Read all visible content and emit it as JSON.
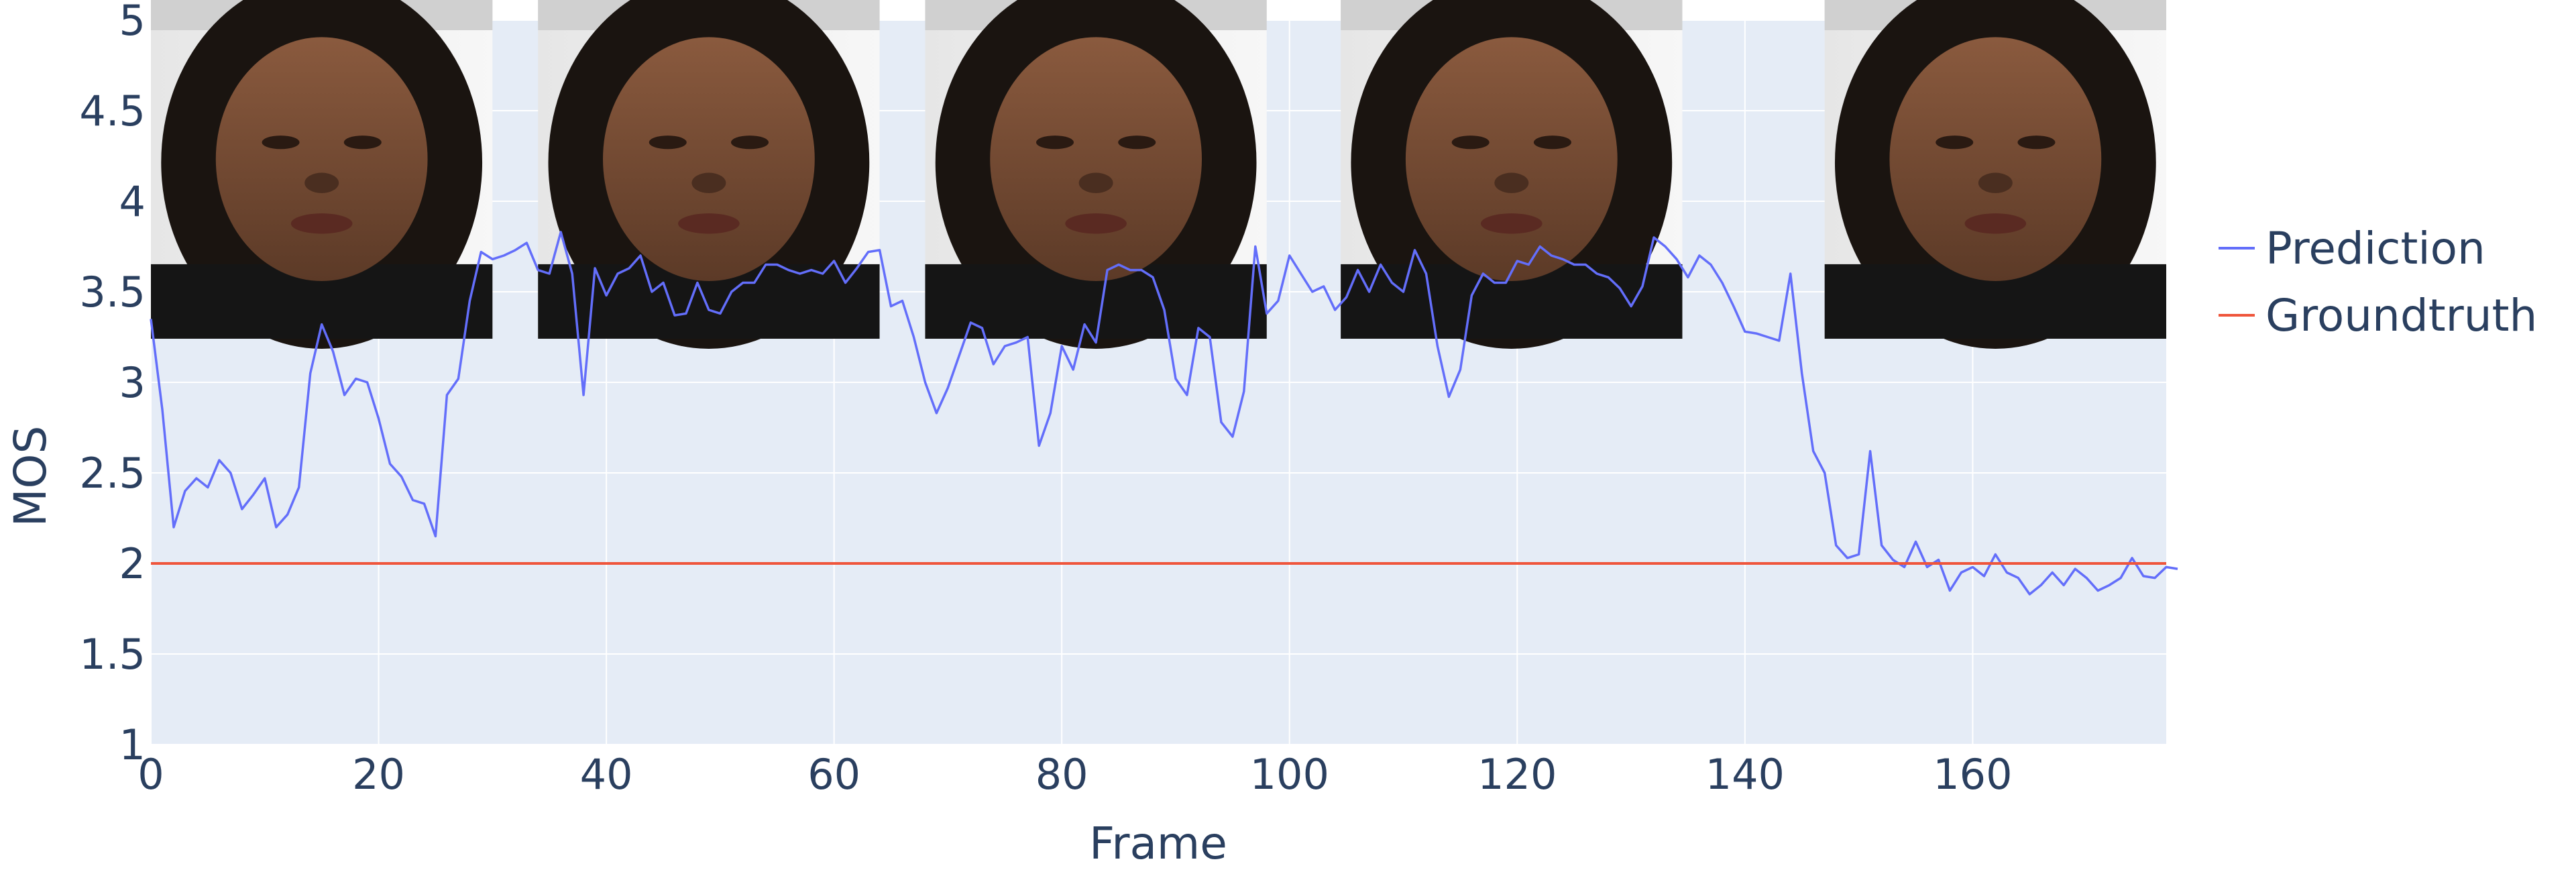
{
  "chart_data": {
    "type": "line",
    "xlabel": "Frame",
    "ylabel": "MOS",
    "xlim": [
      0,
      177
    ],
    "ylim": [
      1,
      5
    ],
    "x_ticks": [
      0,
      20,
      40,
      60,
      80,
      100,
      120,
      140,
      160
    ],
    "y_ticks": [
      1,
      1.5,
      2,
      2.5,
      3,
      3.5,
      4,
      4.5,
      5
    ],
    "y_tick_labels": [
      "1",
      "1.5",
      "2",
      "2.5",
      "3",
      "3.5",
      "4",
      "4.5",
      "5"
    ],
    "grid": true,
    "legend_position": "right",
    "plot_background": "#e5ecf6",
    "thumbnails": [
      {
        "name": "video-frame-1",
        "x_start": 0,
        "x_end": 30
      },
      {
        "name": "video-frame-2",
        "x_start": 34,
        "x_end": 64
      },
      {
        "name": "video-frame-3",
        "x_start": 68,
        "x_end": 98
      },
      {
        "name": "video-frame-4",
        "x_start": 104.5,
        "x_end": 134.5
      },
      {
        "name": "video-frame-5",
        "x_start": 147,
        "x_end": 177
      }
    ],
    "series": [
      {
        "name": "Prediction",
        "color": "#636efa",
        "values": [
          3.35,
          2.85,
          2.2,
          2.4,
          2.47,
          2.42,
          2.57,
          2.5,
          2.3,
          2.38,
          2.47,
          2.2,
          2.27,
          2.42,
          3.05,
          3.32,
          3.17,
          2.93,
          3.02,
          3.0,
          2.8,
          2.55,
          2.48,
          2.35,
          2.33,
          2.15,
          2.93,
          3.02,
          3.45,
          3.72,
          3.68,
          3.7,
          3.73,
          3.77,
          3.62,
          3.6,
          3.83,
          3.6,
          2.93,
          3.63,
          3.48,
          3.6,
          3.63,
          3.7,
          3.5,
          3.55,
          3.37,
          3.38,
          3.55,
          3.4,
          3.38,
          3.5,
          3.55,
          3.55,
          3.65,
          3.65,
          3.62,
          3.6,
          3.62,
          3.6,
          3.67,
          3.55,
          3.63,
          3.72,
          3.73,
          3.42,
          3.45,
          3.25,
          3.0,
          2.83,
          2.97,
          3.15,
          3.33,
          3.3,
          3.1,
          3.2,
          3.22,
          3.25,
          2.65,
          2.83,
          3.2,
          3.07,
          3.32,
          3.22,
          3.62,
          3.65,
          3.62,
          3.62,
          3.58,
          3.4,
          3.02,
          2.93,
          3.3,
          3.25,
          2.78,
          2.7,
          2.95,
          3.75,
          3.38,
          3.45,
          3.7,
          3.6,
          3.5,
          3.53,
          3.4,
          3.47,
          3.62,
          3.5,
          3.65,
          3.55,
          3.5,
          3.73,
          3.6,
          3.2,
          2.92,
          3.07,
          3.48,
          3.6,
          3.55,
          3.55,
          3.67,
          3.65,
          3.75,
          3.7,
          3.68,
          3.65,
          3.65,
          3.6,
          3.58,
          3.52,
          3.42,
          3.53,
          3.8,
          3.75,
          3.68,
          3.58,
          3.7,
          3.65,
          3.55,
          3.42,
          3.28,
          3.27,
          3.25,
          3.23,
          3.6,
          3.05,
          2.62,
          2.5,
          2.1,
          2.03,
          2.05,
          2.62,
          2.1,
          2.02,
          1.98,
          2.12,
          1.98,
          2.02,
          1.85,
          1.95,
          1.98,
          1.93,
          2.05,
          1.95,
          1.92,
          1.83,
          1.88,
          1.95,
          1.88,
          1.97,
          1.92,
          1.85,
          1.88,
          1.92,
          2.03,
          1.93,
          1.92,
          1.98,
          1.97
        ]
      },
      {
        "name": "Groundtruth",
        "color": "#ef553b",
        "constant": 2.0
      }
    ]
  }
}
